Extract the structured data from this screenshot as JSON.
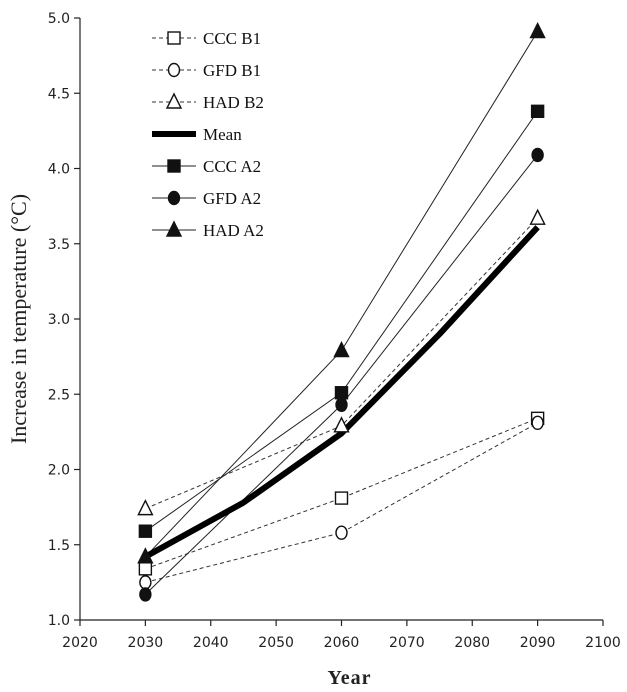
{
  "chart_data": {
    "type": "line",
    "title": "",
    "xlabel": "Year",
    "ylabel": "Increase in temperature  (°C)",
    "xlim": [
      2020,
      2100
    ],
    "ylim": [
      1.0,
      5.0
    ],
    "x_ticks": [
      "2020",
      "2030",
      "2040",
      "2050",
      "2060",
      "2070",
      "2080",
      "2090",
      "2100"
    ],
    "y_ticks": [
      "1.0",
      "1.5",
      "2.0",
      "2.5",
      "3.0",
      "3.5",
      "4.0",
      "4.5",
      "5.0"
    ],
    "grid": false,
    "legend_position": "top-left",
    "series": [
      {
        "name": "CCC B1",
        "line": "dashed",
        "marker": "square-open",
        "x": [
          2030,
          2060,
          2090
        ],
        "y": [
          1.34,
          1.81,
          2.34
        ]
      },
      {
        "name": "GFD B1",
        "line": "dashed",
        "marker": "circle-open",
        "x": [
          2030,
          2060,
          2090
        ],
        "y": [
          1.25,
          1.58,
          2.31
        ]
      },
      {
        "name": "HAD B2",
        "line": "dashed",
        "marker": "triangle-open",
        "x": [
          2030,
          2060,
          2090
        ],
        "y": [
          1.74,
          2.29,
          3.67
        ]
      },
      {
        "name": "Mean",
        "line": "thick",
        "marker": "none",
        "x": [
          2030,
          2045,
          2060,
          2075,
          2090
        ],
        "y": [
          1.42,
          1.78,
          2.24,
          2.9,
          3.61
        ]
      },
      {
        "name": "CCC A2",
        "line": "solid",
        "marker": "square-filled",
        "x": [
          2030,
          2060,
          2090
        ],
        "y": [
          1.59,
          2.51,
          4.38
        ]
      },
      {
        "name": "GFD A2",
        "line": "solid",
        "marker": "circle-filled",
        "x": [
          2030,
          2060,
          2090
        ],
        "y": [
          1.17,
          2.43,
          4.09
        ]
      },
      {
        "name": "HAD A2",
        "line": "solid",
        "marker": "triangle-filled",
        "x": [
          2030,
          2060,
          2090
        ],
        "y": [
          1.42,
          2.79,
          4.91
        ]
      }
    ]
  }
}
